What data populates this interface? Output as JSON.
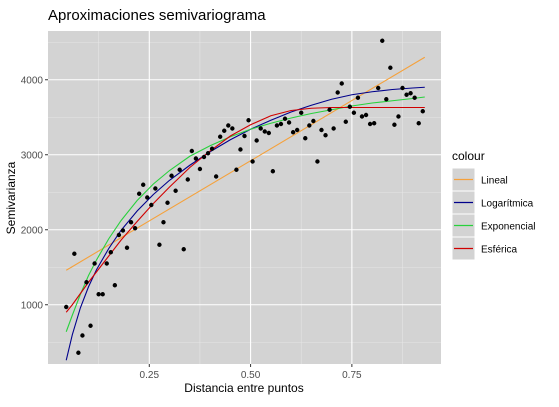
{
  "chart_data": {
    "type": "scatter",
    "title": "Aproximaciones semivariograma",
    "xlabel": "Distancia entre puntos",
    "ylabel": "Semivarianza",
    "xlim": [
      0.0,
      0.97
    ],
    "ylim": [
      210,
      4650
    ],
    "x_ticks": [
      0.25,
      0.5,
      0.75
    ],
    "x_tick_labels": [
      "0.25",
      "0.50",
      "0.75"
    ],
    "y_ticks": [
      1000,
      2000,
      3000,
      4000
    ],
    "y_tick_labels": [
      "1000",
      "2000",
      "3000",
      "4000"
    ],
    "grid": true,
    "legend": {
      "title": "colour",
      "placement": "right",
      "entries": [
        "Lineal",
        "Logarítmica",
        "Exponencial",
        "Esférica"
      ]
    },
    "points": {
      "color": "#000000",
      "x": [
        0.045,
        0.065,
        0.075,
        0.085,
        0.095,
        0.105,
        0.115,
        0.125,
        0.135,
        0.145,
        0.155,
        0.165,
        0.175,
        0.185,
        0.195,
        0.205,
        0.215,
        0.225,
        0.235,
        0.245,
        0.255,
        0.265,
        0.275,
        0.285,
        0.295,
        0.305,
        0.315,
        0.325,
        0.335,
        0.345,
        0.355,
        0.365,
        0.375,
        0.385,
        0.395,
        0.405,
        0.415,
        0.425,
        0.435,
        0.445,
        0.455,
        0.465,
        0.475,
        0.485,
        0.495,
        0.505,
        0.515,
        0.525,
        0.535,
        0.545,
        0.555,
        0.565,
        0.575,
        0.585,
        0.595,
        0.605,
        0.615,
        0.625,
        0.635,
        0.645,
        0.655,
        0.665,
        0.675,
        0.685,
        0.695,
        0.705,
        0.715,
        0.725,
        0.735,
        0.745,
        0.755,
        0.765,
        0.775,
        0.785,
        0.795,
        0.805,
        0.815,
        0.825,
        0.835,
        0.845,
        0.855,
        0.865,
        0.875,
        0.885,
        0.895,
        0.905,
        0.915,
        0.925
      ],
      "y": [
        970,
        1680,
        360,
        590,
        1300,
        720,
        1550,
        1140,
        1140,
        1550,
        1700,
        1260,
        1930,
        1990,
        1760,
        2100,
        2020,
        2480,
        2600,
        2430,
        2330,
        2550,
        1800,
        2100,
        2360,
        2720,
        2520,
        2800,
        1740,
        2670,
        3050,
        2950,
        2810,
        2970,
        3020,
        3080,
        2710,
        3240,
        3320,
        3390,
        3350,
        2800,
        3070,
        3250,
        3460,
        2910,
        3190,
        3350,
        3310,
        3290,
        2780,
        3390,
        3410,
        3480,
        3430,
        3300,
        3330,
        3560,
        3220,
        3390,
        3450,
        2910,
        3330,
        3260,
        3600,
        3350,
        3830,
        3950,
        3440,
        3640,
        3560,
        3760,
        3510,
        3530,
        3410,
        3420,
        3890,
        4520,
        3740,
        4160,
        3400,
        3510,
        3890,
        3800,
        3820,
        3760,
        3420,
        3580
      ]
    },
    "series": [
      {
        "name": "Lineal",
        "color": "#f5a13b",
        "x": [
          0.045,
          0.93
        ],
        "y": [
          1460,
          4300
        ]
      },
      {
        "name": "Logarítmica",
        "color": "#00008b",
        "x": [
          0.045,
          0.06,
          0.08,
          0.1,
          0.12,
          0.15,
          0.18,
          0.22,
          0.26,
          0.3,
          0.35,
          0.4,
          0.45,
          0.5,
          0.55,
          0.6,
          0.65,
          0.7,
          0.75,
          0.8,
          0.85,
          0.9,
          0.93
        ],
        "y": [
          260,
          600,
          960,
          1240,
          1470,
          1750,
          1990,
          2250,
          2470,
          2660,
          2860,
          3040,
          3200,
          3340,
          3460,
          3570,
          3660,
          3740,
          3800,
          3840,
          3870,
          3890,
          3900
        ]
      },
      {
        "name": "Exponencial",
        "color": "#28d13c",
        "x": [
          0.045,
          0.06,
          0.08,
          0.1,
          0.12,
          0.15,
          0.18,
          0.22,
          0.26,
          0.3,
          0.35,
          0.4,
          0.45,
          0.5,
          0.55,
          0.6,
          0.65,
          0.7,
          0.75,
          0.8,
          0.85,
          0.9,
          0.93
        ],
        "y": [
          640,
          860,
          1140,
          1390,
          1600,
          1880,
          2120,
          2390,
          2610,
          2790,
          2980,
          3120,
          3240,
          3340,
          3420,
          3490,
          3550,
          3600,
          3650,
          3690,
          3720,
          3750,
          3770
        ]
      },
      {
        "name": "Esférica",
        "color": "#d00000",
        "x": [
          0.045,
          0.06,
          0.08,
          0.1,
          0.12,
          0.15,
          0.18,
          0.22,
          0.26,
          0.3,
          0.35,
          0.4,
          0.45,
          0.5,
          0.55,
          0.6,
          0.65,
          0.7,
          0.74,
          0.78,
          0.82,
          0.86,
          0.9,
          0.93
        ],
        "y": [
          900,
          1000,
          1150,
          1300,
          1440,
          1650,
          1860,
          2110,
          2350,
          2570,
          2830,
          3050,
          3250,
          3400,
          3520,
          3590,
          3620,
          3630,
          3630,
          3630,
          3630,
          3630,
          3630,
          3630
        ]
      }
    ]
  }
}
